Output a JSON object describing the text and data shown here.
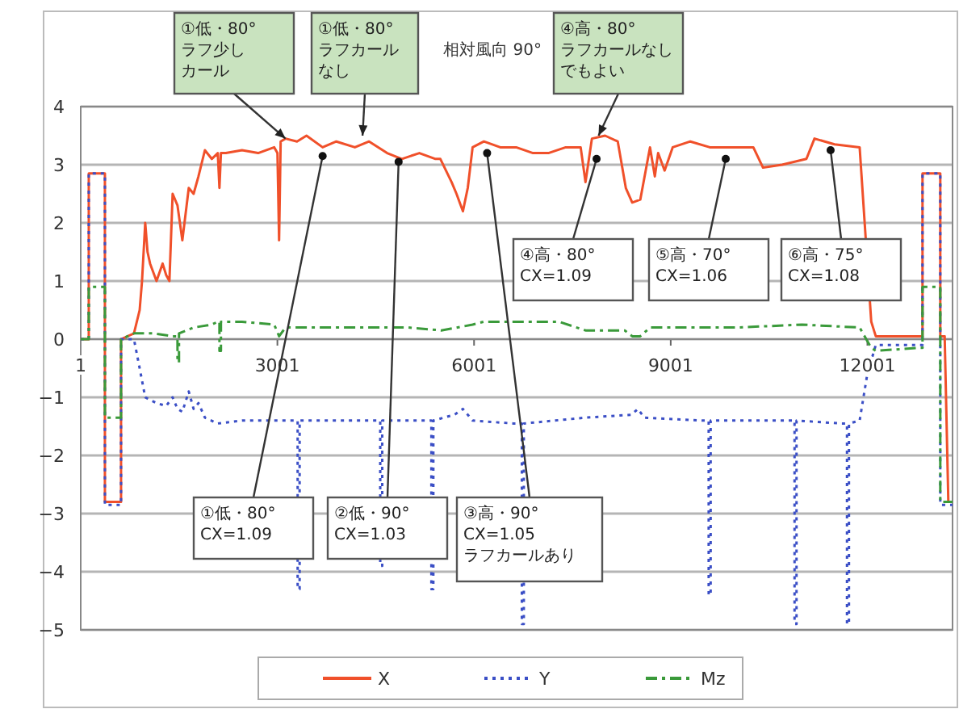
{
  "chart_data": {
    "type": "line",
    "title": "相対風向  90°",
    "ylim": [
      -5,
      4
    ],
    "yticks": [
      -5,
      -4,
      -3,
      -2,
      -1,
      0,
      1,
      2,
      3,
      4
    ],
    "xlim": [
      1,
      13300
    ],
    "xticks": [
      1,
      3001,
      6001,
      9001,
      12001
    ],
    "grid": "y",
    "legend": "bottom",
    "series": [
      {
        "name": "X",
        "color": "#f0502a",
        "line_style": "solid",
        "x": [
          1,
          124,
          124,
          370,
          370,
          616,
          616,
          813,
          900,
          936,
          985,
          1020,
          1059,
          1157,
          1250,
          1305,
          1354,
          1403,
          1477,
          1551,
          1649,
          1723,
          1797,
          1895,
          2000,
          2092,
          2117,
          2140,
          2215,
          2461,
          2707,
          2953,
          3002,
          3027,
          3051,
          3125,
          3300,
          3445,
          3691,
          3900,
          4183,
          4400,
          4675,
          4900,
          5167,
          5413,
          5487,
          5659,
          5733,
          5831,
          5905,
          5979,
          6151,
          6400,
          6643,
          6900,
          7135,
          7400,
          7627,
          7701,
          7799,
          8000,
          8193,
          8316,
          8414,
          8537,
          8685,
          8759,
          8809,
          8908,
          9031,
          9300,
          9597,
          9900,
          10261,
          10409,
          10700,
          11071,
          11194,
          11500,
          11883,
          12060,
          12129,
          12793,
          12842,
          12842,
          13113,
          13113,
          13180,
          13236,
          13300
        ],
        "values": [
          0,
          0,
          2.85,
          2.85,
          -2.8,
          -2.8,
          0,
          0.1,
          0.5,
          1.0,
          2.0,
          1.5,
          1.3,
          1.0,
          1.3,
          1.1,
          1.0,
          2.5,
          2.3,
          1.7,
          2.6,
          2.5,
          2.8,
          3.25,
          3.1,
          3.2,
          2.6,
          3.2,
          3.2,
          3.25,
          3.2,
          3.3,
          3.2,
          1.7,
          3.4,
          3.45,
          3.4,
          3.5,
          3.3,
          3.4,
          3.3,
          3.4,
          3.2,
          3.1,
          3.2,
          3.1,
          3.1,
          2.7,
          2.5,
          2.2,
          2.6,
          3.3,
          3.4,
          3.3,
          3.3,
          3.2,
          3.2,
          3.3,
          3.3,
          2.7,
          3.45,
          3.5,
          3.4,
          2.6,
          2.35,
          2.4,
          3.3,
          2.8,
          3.2,
          2.9,
          3.3,
          3.4,
          3.3,
          3.3,
          3.3,
          2.95,
          3.0,
          3.1,
          3.45,
          3.35,
          3.3,
          0.3,
          0.05,
          0.05,
          0.05,
          2.85,
          2.85,
          0.05,
          0.05,
          -2.8,
          -2.8
        ]
      },
      {
        "name": "Y",
        "color": "#3b4fc6",
        "line_style": "dotted",
        "x": [
          1,
          124,
          124,
          370,
          370,
          616,
          616,
          813,
          900,
          985,
          1157,
          1305,
          1403,
          1477,
          1551,
          1649,
          1723,
          1797,
          1895,
          2092,
          2461,
          3300,
          3310,
          3310,
          3340,
          3340,
          4400,
          4570,
          4570,
          4600,
          4600,
          5350,
          5350,
          5380,
          5380,
          5700,
          5831,
          5979,
          6600,
          6730,
          6730,
          6760,
          6760,
          7700,
          8400,
          8500,
          8600,
          9500,
          9580,
          9580,
          9610,
          9610,
          10800,
          10890,
          10890,
          10920,
          10920,
          11600,
          11690,
          11690,
          11720,
          11720,
          11883,
          12000,
          12129,
          12793,
          12842,
          12842,
          13113,
          13113,
          13300
        ],
        "values": [
          0,
          0,
          2.85,
          2.85,
          -2.85,
          -2.85,
          0,
          0,
          -0.5,
          -1.0,
          -1.1,
          -1.15,
          -1.0,
          -1.2,
          -1.25,
          -0.9,
          -1.2,
          -1.1,
          -1.35,
          -1.45,
          -1.4,
          -1.4,
          -1.4,
          -4.3,
          -4.3,
          -1.4,
          -1.4,
          -1.4,
          -3.9,
          -3.9,
          -1.4,
          -1.4,
          -4.3,
          -4.3,
          -1.4,
          -1.3,
          -1.2,
          -1.4,
          -1.45,
          -1.45,
          -4.9,
          -4.9,
          -1.45,
          -1.35,
          -1.3,
          -1.2,
          -1.35,
          -1.4,
          -1.4,
          -4.4,
          -4.4,
          -1.4,
          -1.4,
          -1.4,
          -4.9,
          -4.9,
          -1.4,
          -1.45,
          -1.45,
          -4.9,
          -4.9,
          -1.45,
          -1.4,
          -0.6,
          -0.1,
          -0.1,
          -0.1,
          2.85,
          2.85,
          -2.85,
          -2.85
        ]
      },
      {
        "name": "Mz",
        "color": "#3a9a3a",
        "line_style": "dashed",
        "x": [
          1,
          124,
          124,
          370,
          370,
          616,
          616,
          813,
          1100,
          1400,
          1477,
          1477,
          1500,
          1500,
          1723,
          2000,
          2092,
          2117,
          2117,
          2140,
          2140,
          2461,
          2953,
          3027,
          3125,
          4000,
          5000,
          5500,
          5979,
          6151,
          7300,
          7701,
          8300,
          8414,
          8537,
          8685,
          10000,
          11000,
          11883,
          12060,
          12129,
          12793,
          12842,
          12842,
          13113,
          13113,
          13300
        ],
        "values": [
          0,
          0,
          0.9,
          0.9,
          -1.35,
          -1.35,
          0,
          0.1,
          0.1,
          0.05,
          0.05,
          -0.4,
          -0.4,
          0.1,
          0.2,
          0.25,
          0.3,
          0.3,
          -0.2,
          -0.2,
          0.3,
          0.3,
          0.25,
          0.05,
          0.2,
          0.2,
          0.2,
          0.15,
          0.25,
          0.3,
          0.3,
          0.15,
          0.15,
          0.05,
          0.05,
          0.2,
          0.2,
          0.25,
          0.2,
          -0.15,
          -0.2,
          -0.15,
          -0.15,
          0.9,
          0.9,
          -2.8,
          -2.8
        ]
      }
    ],
    "annotations": [
      {
        "text": "①低・80°\nラフ少しカール",
        "x": 3125,
        "y": 3.45
      },
      {
        "text": "①低・80°\nラフカールなし",
        "x": 4300,
        "y": 3.5
      },
      {
        "text": "④高・80°\nラフカールなしでもよい",
        "x": 7900,
        "y": 3.5
      },
      {
        "text": "①低・80°\nCX=1.09",
        "x": 3691,
        "y": 3.15
      },
      {
        "text": "②低・90°\nCX=1.03",
        "x": 4850,
        "y": 3.05
      },
      {
        "text": "③高・90°\nCX=1.05\nラフカールあり",
        "x": 6200,
        "y": 3.2
      },
      {
        "text": "④高・80°\nCX=1.09",
        "x": 7870,
        "y": 3.1
      },
      {
        "text": "⑤高・70°\nCX=1.06",
        "x": 9840,
        "y": 3.1
      },
      {
        "text": "⑥高・75°\nCX=1.08",
        "x": 11440,
        "y": 3.25
      }
    ]
  }
}
